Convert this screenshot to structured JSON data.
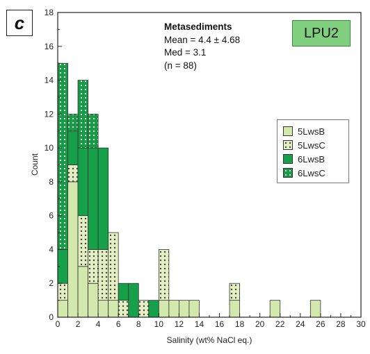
{
  "panel_label": "c",
  "stats": {
    "title": "Metasediments",
    "mean": "Mean = 4.4 ± 4.68",
    "median": "Med = 3.1",
    "n": "(n = 88)"
  },
  "tag": "LPU2",
  "colors": {
    "5LwsB": "#d3e8ac",
    "5LwsC": "#e3efc2",
    "6LwsB": "#17a04a",
    "6LwsC": "#1a9a48",
    "dots": "#444444",
    "tag_bg": "#7fcf7f"
  },
  "chart_data": {
    "type": "bar",
    "stacked": true,
    "bin_width": 1,
    "bins_left_edge": [
      0,
      1,
      2,
      3,
      4,
      5,
      6,
      7,
      8,
      9,
      10,
      11,
      12,
      13,
      14,
      15,
      16,
      17,
      18,
      19,
      20,
      21,
      22,
      23,
      24,
      25,
      26,
      27,
      28,
      29
    ],
    "series": [
      {
        "name": "5LwsB",
        "values": [
          1,
          8,
          3,
          2,
          1,
          1,
          0,
          0,
          0,
          0,
          1,
          1,
          1,
          1,
          0,
          0,
          0,
          1,
          0,
          0,
          0,
          1,
          0,
          0,
          0,
          1,
          0,
          0,
          0,
          0
        ]
      },
      {
        "name": "5LwsC",
        "values": [
          1,
          1,
          3,
          2,
          3,
          4,
          1,
          0,
          1,
          0,
          3,
          0,
          0,
          0,
          0,
          0,
          0,
          1,
          0,
          0,
          0,
          0,
          0,
          0,
          0,
          0,
          0,
          0,
          0,
          0
        ]
      },
      {
        "name": "6LwsB",
        "values": [
          2,
          2,
          4,
          6,
          6,
          0,
          1,
          2,
          0,
          1,
          0,
          0,
          0,
          0,
          0,
          0,
          0,
          0,
          0,
          0,
          0,
          0,
          0,
          0,
          0,
          0,
          0,
          0,
          0,
          0
        ]
      },
      {
        "name": "6LwsC",
        "values": [
          11,
          1,
          4,
          2,
          0,
          0,
          0,
          0,
          0,
          0,
          0,
          0,
          0,
          0,
          0,
          0,
          0,
          0,
          0,
          0,
          0,
          0,
          0,
          0,
          0,
          0,
          0,
          0,
          0,
          0
        ]
      }
    ],
    "xlabel": "Salinity (wt% NaCl eq.)",
    "ylabel": "Count",
    "xlim": [
      0,
      30
    ],
    "ylim": [
      0,
      18
    ],
    "x_ticks": [
      0,
      2,
      4,
      6,
      8,
      10,
      12,
      14,
      16,
      18,
      20,
      22,
      24,
      26,
      28,
      30
    ],
    "y_ticks": [
      0,
      2,
      4,
      6,
      8,
      10,
      12,
      14,
      16,
      18
    ],
    "grid": false,
    "legend_position": "right"
  }
}
